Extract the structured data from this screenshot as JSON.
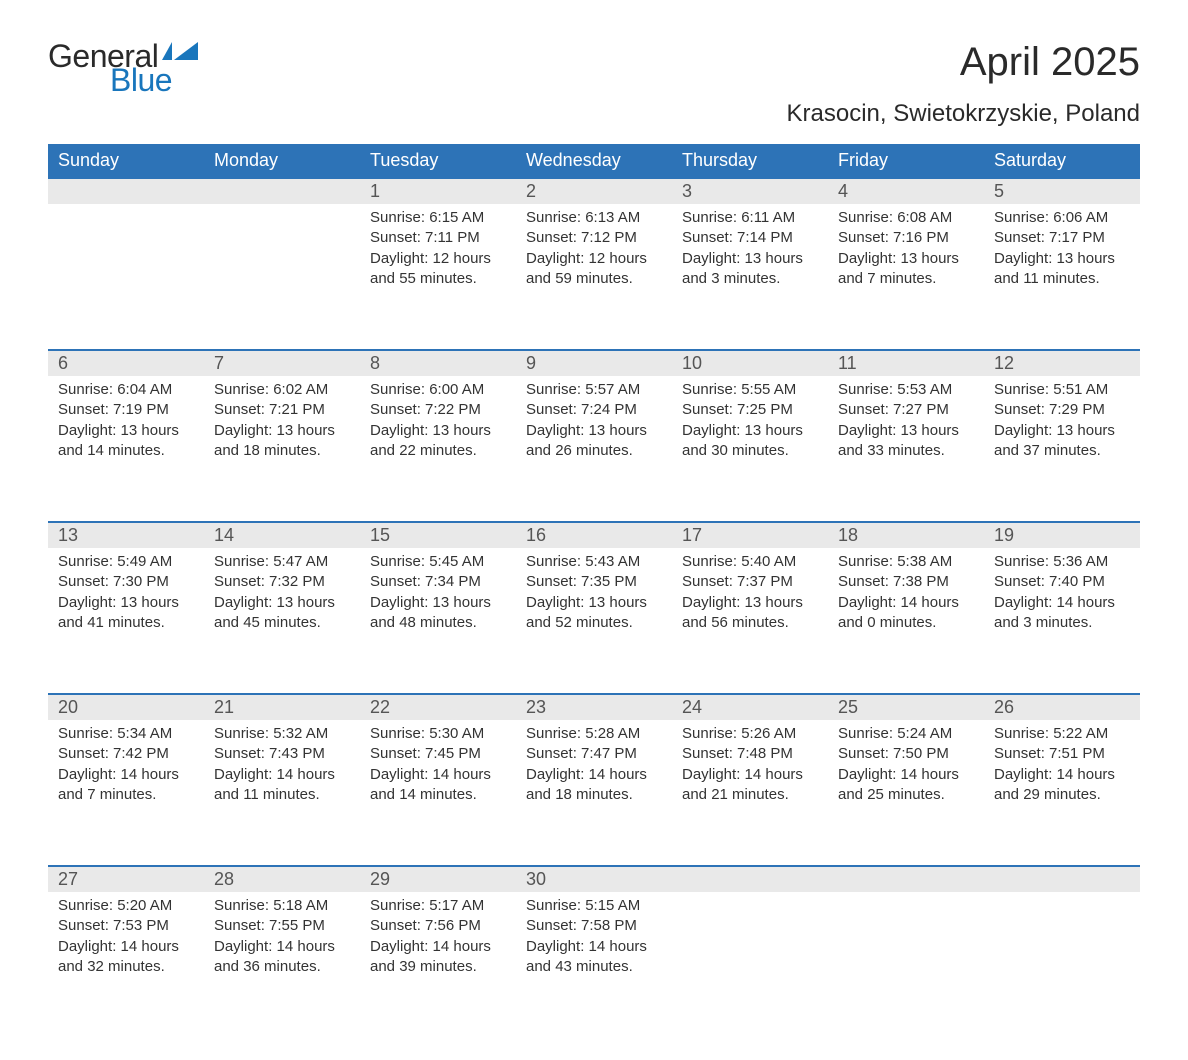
{
  "logo": {
    "word1": "General",
    "word2": "Blue",
    "text_color1": "#2a2a2a",
    "text_color2": "#1976bc",
    "shape_color": "#1976bc"
  },
  "title": "April 2025",
  "subtitle": "Krasocin, Swietokrzyskie, Poland",
  "colors": {
    "header_bg": "#2d73b7",
    "header_text": "#ffffff",
    "daynum_bg": "#e9e9e9",
    "row_border": "#2d73b7",
    "body_text": "#333333"
  },
  "day_labels": [
    "Sunday",
    "Monday",
    "Tuesday",
    "Wednesday",
    "Thursday",
    "Friday",
    "Saturday"
  ],
  "weeks": [
    [
      null,
      null,
      {
        "n": "1",
        "sunrise": "6:15 AM",
        "sunset": "7:11 PM",
        "dl": "12 hours and 55 minutes."
      },
      {
        "n": "2",
        "sunrise": "6:13 AM",
        "sunset": "7:12 PM",
        "dl": "12 hours and 59 minutes."
      },
      {
        "n": "3",
        "sunrise": "6:11 AM",
        "sunset": "7:14 PM",
        "dl": "13 hours and 3 minutes."
      },
      {
        "n": "4",
        "sunrise": "6:08 AM",
        "sunset": "7:16 PM",
        "dl": "13 hours and 7 minutes."
      },
      {
        "n": "5",
        "sunrise": "6:06 AM",
        "sunset": "7:17 PM",
        "dl": "13 hours and 11 minutes."
      }
    ],
    [
      {
        "n": "6",
        "sunrise": "6:04 AM",
        "sunset": "7:19 PM",
        "dl": "13 hours and 14 minutes."
      },
      {
        "n": "7",
        "sunrise": "6:02 AM",
        "sunset": "7:21 PM",
        "dl": "13 hours and 18 minutes."
      },
      {
        "n": "8",
        "sunrise": "6:00 AM",
        "sunset": "7:22 PM",
        "dl": "13 hours and 22 minutes."
      },
      {
        "n": "9",
        "sunrise": "5:57 AM",
        "sunset": "7:24 PM",
        "dl": "13 hours and 26 minutes."
      },
      {
        "n": "10",
        "sunrise": "5:55 AM",
        "sunset": "7:25 PM",
        "dl": "13 hours and 30 minutes."
      },
      {
        "n": "11",
        "sunrise": "5:53 AM",
        "sunset": "7:27 PM",
        "dl": "13 hours and 33 minutes."
      },
      {
        "n": "12",
        "sunrise": "5:51 AM",
        "sunset": "7:29 PM",
        "dl": "13 hours and 37 minutes."
      }
    ],
    [
      {
        "n": "13",
        "sunrise": "5:49 AM",
        "sunset": "7:30 PM",
        "dl": "13 hours and 41 minutes."
      },
      {
        "n": "14",
        "sunrise": "5:47 AM",
        "sunset": "7:32 PM",
        "dl": "13 hours and 45 minutes."
      },
      {
        "n": "15",
        "sunrise": "5:45 AM",
        "sunset": "7:34 PM",
        "dl": "13 hours and 48 minutes."
      },
      {
        "n": "16",
        "sunrise": "5:43 AM",
        "sunset": "7:35 PM",
        "dl": "13 hours and 52 minutes."
      },
      {
        "n": "17",
        "sunrise": "5:40 AM",
        "sunset": "7:37 PM",
        "dl": "13 hours and 56 minutes."
      },
      {
        "n": "18",
        "sunrise": "5:38 AM",
        "sunset": "7:38 PM",
        "dl": "14 hours and 0 minutes."
      },
      {
        "n": "19",
        "sunrise": "5:36 AM",
        "sunset": "7:40 PM",
        "dl": "14 hours and 3 minutes."
      }
    ],
    [
      {
        "n": "20",
        "sunrise": "5:34 AM",
        "sunset": "7:42 PM",
        "dl": "14 hours and 7 minutes."
      },
      {
        "n": "21",
        "sunrise": "5:32 AM",
        "sunset": "7:43 PM",
        "dl": "14 hours and 11 minutes."
      },
      {
        "n": "22",
        "sunrise": "5:30 AM",
        "sunset": "7:45 PM",
        "dl": "14 hours and 14 minutes."
      },
      {
        "n": "23",
        "sunrise": "5:28 AM",
        "sunset": "7:47 PM",
        "dl": "14 hours and 18 minutes."
      },
      {
        "n": "24",
        "sunrise": "5:26 AM",
        "sunset": "7:48 PM",
        "dl": "14 hours and 21 minutes."
      },
      {
        "n": "25",
        "sunrise": "5:24 AM",
        "sunset": "7:50 PM",
        "dl": "14 hours and 25 minutes."
      },
      {
        "n": "26",
        "sunrise": "5:22 AM",
        "sunset": "7:51 PM",
        "dl": "14 hours and 29 minutes."
      }
    ],
    [
      {
        "n": "27",
        "sunrise": "5:20 AM",
        "sunset": "7:53 PM",
        "dl": "14 hours and 32 minutes."
      },
      {
        "n": "28",
        "sunrise": "5:18 AM",
        "sunset": "7:55 PM",
        "dl": "14 hours and 36 minutes."
      },
      {
        "n": "29",
        "sunrise": "5:17 AM",
        "sunset": "7:56 PM",
        "dl": "14 hours and 39 minutes."
      },
      {
        "n": "30",
        "sunrise": "5:15 AM",
        "sunset": "7:58 PM",
        "dl": "14 hours and 43 minutes."
      },
      null,
      null,
      null
    ]
  ],
  "labels": {
    "sunrise_prefix": "Sunrise: ",
    "sunset_prefix": "Sunset: ",
    "daylight_prefix": "Daylight: "
  }
}
